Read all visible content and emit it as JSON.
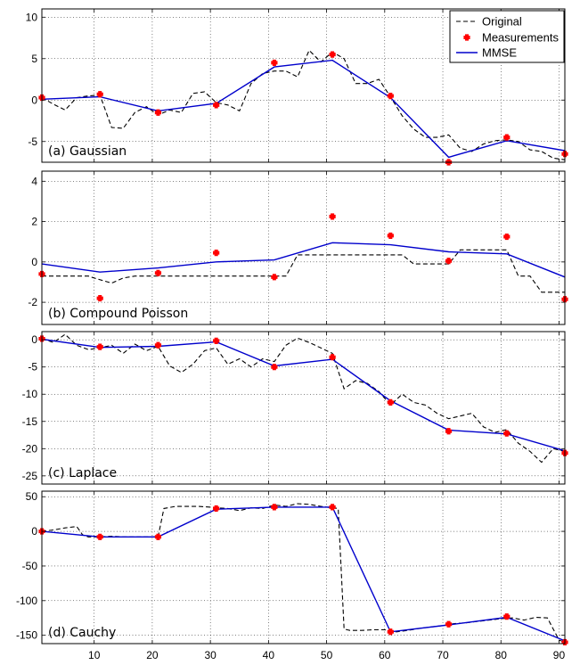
{
  "colors": {
    "original": "#000000",
    "measurement": "#ff0000",
    "mmse": "#0000cc"
  },
  "legend": {
    "placement": "top-right",
    "entries": [
      "Original",
      "Measurements",
      "MMSE"
    ]
  },
  "chart_data": [
    {
      "type": "line",
      "title": "(a) Gaussian",
      "xlim": [
        1,
        91
      ],
      "ylim": [
        -7.5,
        11
      ],
      "yticks": [
        -5,
        0,
        5,
        10
      ],
      "grid": true,
      "series": [
        {
          "name": "Original",
          "style": "dashed",
          "x": [
            1,
            3,
            5,
            7,
            9,
            11,
            13,
            15,
            17,
            19,
            21,
            23,
            25,
            27,
            29,
            31,
            33,
            35,
            37,
            39,
            41,
            43,
            45,
            47,
            49,
            51,
            53,
            55,
            57,
            59,
            61,
            63,
            65,
            67,
            69,
            71,
            73,
            75,
            77,
            79,
            81,
            83,
            85,
            87,
            89,
            91
          ],
          "y": [
            0.3,
            -0.5,
            -1.2,
            0.3,
            0.5,
            0.6,
            -3.3,
            -3.4,
            -1.5,
            -0.8,
            -1.8,
            -1.2,
            -1.5,
            0.8,
            1.0,
            -0.3,
            -0.6,
            -1.3,
            2.0,
            3.2,
            3.5,
            3.5,
            2.8,
            6.0,
            4.6,
            5.8,
            5.0,
            2.0,
            2.0,
            2.5,
            0.4,
            -1.9,
            -3.5,
            -4.5,
            -4.5,
            -4.2,
            -5.8,
            -6.2,
            -5.3,
            -4.9,
            -4.8,
            -5.0,
            -6.0,
            -6.2,
            -7.0,
            -7.2
          ]
        },
        {
          "name": "Measurements",
          "style": "marker",
          "x": [
            1,
            11,
            21,
            31,
            41,
            51,
            61,
            71,
            81,
            91
          ],
          "y": [
            0.3,
            0.7,
            -1.5,
            -0.6,
            4.5,
            5.5,
            0.5,
            -7.5,
            -4.5,
            -6.5
          ]
        },
        {
          "name": "MMSE",
          "style": "solid",
          "x": [
            1,
            11,
            21,
            31,
            41,
            51,
            61,
            71,
            81,
            91
          ],
          "y": [
            0.1,
            0.4,
            -1.3,
            -0.4,
            4.0,
            4.8,
            0.3,
            -6.9,
            -4.9,
            -6.1
          ]
        }
      ]
    },
    {
      "type": "line",
      "title": "(b) Compound Poisson",
      "xlim": [
        1,
        91
      ],
      "ylim": [
        -3.1,
        4.5
      ],
      "yticks": [
        -2,
        0,
        2,
        4
      ],
      "grid": true,
      "series": [
        {
          "name": "Original",
          "style": "dashed",
          "x": [
            1,
            9,
            10,
            13,
            15,
            17,
            19,
            21,
            27,
            33,
            35,
            37,
            39,
            41,
            43,
            45,
            52,
            55,
            57,
            59,
            63,
            65,
            67,
            69,
            71,
            73,
            76,
            79,
            81,
            83,
            85,
            87,
            89,
            91
          ],
          "y": [
            -0.7,
            -0.7,
            -0.8,
            -1.05,
            -0.8,
            -0.7,
            -0.7,
            -0.7,
            -0.7,
            -0.7,
            -0.7,
            -0.7,
            -0.7,
            -0.7,
            -0.7,
            0.35,
            0.35,
            0.35,
            0.35,
            0.35,
            0.35,
            -0.1,
            -0.1,
            -0.1,
            -0.1,
            0.6,
            0.6,
            0.6,
            0.6,
            -0.7,
            -0.7,
            -1.5,
            -1.5,
            -1.5
          ]
        },
        {
          "name": "Measurements",
          "style": "marker",
          "x": [
            1,
            11,
            21,
            31,
            41,
            51,
            61,
            71,
            81,
            91
          ],
          "y": [
            -0.6,
            -1.8,
            -0.55,
            0.45,
            -0.75,
            2.25,
            1.3,
            0.05,
            1.25,
            -1.85
          ]
        },
        {
          "name": "MMSE",
          "style": "solid",
          "x": [
            1,
            11,
            21,
            31,
            41,
            51,
            61,
            71,
            81,
            91
          ],
          "y": [
            -0.1,
            -0.5,
            -0.3,
            0.0,
            0.1,
            0.95,
            0.85,
            0.5,
            0.4,
            -0.75
          ]
        }
      ]
    },
    {
      "type": "line",
      "title": "(c) Laplace",
      "xlim": [
        1,
        91
      ],
      "ylim": [
        -26.5,
        1.5
      ],
      "yticks": [
        -25,
        -20,
        -15,
        -10,
        -5,
        0
      ],
      "grid": true,
      "series": [
        {
          "name": "Original",
          "style": "dashed",
          "x": [
            1,
            3,
            5,
            7,
            9,
            11,
            13,
            15,
            17,
            19,
            21,
            23,
            25,
            27,
            29,
            31,
            33,
            35,
            37,
            39,
            41,
            43,
            45,
            47,
            49,
            51,
            53,
            55,
            57,
            59,
            61,
            63,
            65,
            67,
            69,
            71,
            73,
            75,
            77,
            79,
            81,
            83,
            85,
            87,
            89,
            91
          ],
          "y": [
            0.2,
            -0.5,
            1.0,
            -1.0,
            -1.8,
            -1.5,
            -1.0,
            -2.5,
            -0.8,
            -2.0,
            -1.2,
            -4.8,
            -6.0,
            -4.5,
            -2.0,
            -1.5,
            -4.5,
            -3.5,
            -5.0,
            -3.5,
            -4.0,
            -1.0,
            0.3,
            -0.5,
            -1.5,
            -2.5,
            -9.0,
            -7.5,
            -8.0,
            -9.5,
            -12.0,
            -10.0,
            -11.5,
            -12.0,
            -13.5,
            -14.5,
            -14.0,
            -13.5,
            -16.0,
            -17.0,
            -16.5,
            -19.0,
            -20.5,
            -22.5,
            -20.0,
            -20.5
          ]
        },
        {
          "name": "Measurements",
          "style": "marker",
          "x": [
            1,
            11,
            21,
            31,
            41,
            51,
            61,
            71,
            81,
            91
          ],
          "y": [
            0.2,
            -1.3,
            -1.0,
            -0.2,
            -5.0,
            -3.2,
            -11.5,
            -16.8,
            -17.2,
            -20.8
          ]
        },
        {
          "name": "MMSE",
          "style": "solid",
          "x": [
            1,
            11,
            21,
            31,
            41,
            51,
            61,
            71,
            81,
            91
          ],
          "y": [
            0.1,
            -1.4,
            -1.2,
            -0.4,
            -4.8,
            -3.6,
            -11.2,
            -16.6,
            -17.3,
            -20.4
          ]
        }
      ]
    },
    {
      "type": "line",
      "title": "(d) Cauchy",
      "xlim": [
        1,
        91
      ],
      "ylim": [
        -162,
        58
      ],
      "yticks": [
        -150,
        -100,
        -50,
        0,
        50
      ],
      "xticks": [
        10,
        20,
        30,
        40,
        50,
        60,
        70,
        80,
        90
      ],
      "grid": true,
      "series": [
        {
          "name": "Original",
          "style": "dashed",
          "x": [
            1,
            3,
            5,
            7,
            8,
            9,
            11,
            13,
            15,
            17,
            19,
            21,
            22,
            24,
            26,
            28,
            30,
            31,
            33,
            35,
            37,
            39,
            41,
            43,
            45,
            47,
            49,
            51,
            52,
            53,
            54,
            56,
            58,
            60,
            62,
            64,
            66,
            68,
            70,
            72,
            74,
            76,
            78,
            80,
            82,
            84,
            86,
            88,
            90,
            91
          ],
          "y": [
            0,
            2,
            5,
            7,
            -5,
            -8,
            -8,
            -7,
            -8,
            -8,
            -8,
            -8,
            33,
            36,
            36,
            36,
            35,
            34,
            33,
            30,
            34,
            33,
            38,
            36,
            40,
            39,
            36,
            34,
            33,
            -141,
            -143,
            -143,
            -142,
            -142,
            -145,
            -143,
            -140,
            -138,
            -136,
            -133,
            -132,
            -130,
            -128,
            -126,
            -125,
            -128,
            -124,
            -125,
            -157,
            -160
          ]
        },
        {
          "name": "Measurements",
          "style": "marker",
          "x": [
            1,
            11,
            21,
            31,
            41,
            51,
            61,
            71,
            81,
            91
          ],
          "y": [
            0,
            -8,
            -8,
            33,
            35,
            35,
            -145,
            -134,
            -123,
            -160
          ]
        },
        {
          "name": "MMSE",
          "style": "solid",
          "x": [
            1,
            11,
            21,
            31,
            41,
            51,
            61,
            71,
            81,
            91
          ],
          "y": [
            0,
            -8,
            -8,
            32,
            35,
            35,
            -145,
            -135,
            -124,
            -158
          ]
        }
      ]
    }
  ]
}
